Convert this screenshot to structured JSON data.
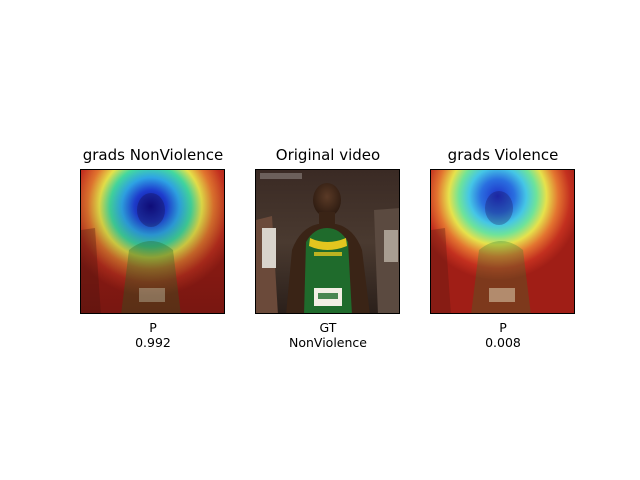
{
  "panels": [
    {
      "title": "grads NonViolence",
      "label": "P",
      "value": "0.992",
      "image": "gradcam-heatmap-nonviolence"
    },
    {
      "title": "Original video",
      "label": "GT",
      "value": "NonViolence",
      "image": "video-frame-sprinter"
    },
    {
      "title": "grads Violence",
      "label": "P",
      "value": "0.008",
      "image": "gradcam-heatmap-violence"
    }
  ],
  "colors": {
    "heatmap_hot": "#b3261e",
    "heatmap_cold": "#1a1aa8",
    "jersey_green": "#1f6b2c",
    "jersey_yellow": "#e3c51f"
  }
}
